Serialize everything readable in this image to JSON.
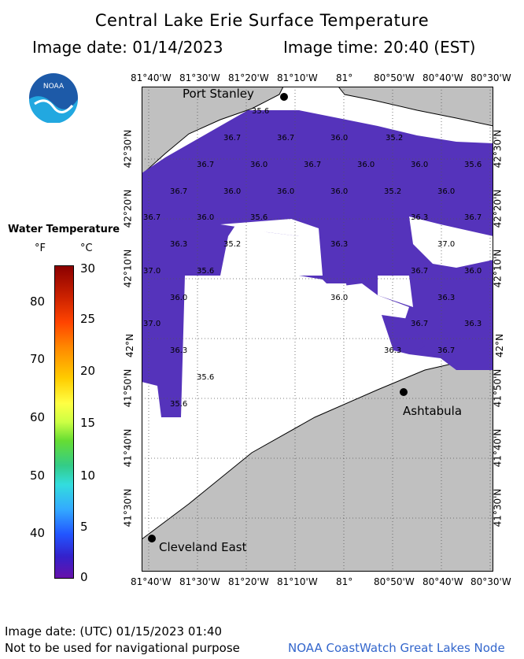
{
  "title": "Central Lake Erie Surface Temperature",
  "image_date": "Image date: 01/14/2023",
  "image_time": "Image time: 20:40 (EST)",
  "logo": {
    "icon": "noaa-logo-icon",
    "text": "NOAA"
  },
  "legend": {
    "title": "Water Temperature",
    "unit_f": "°F",
    "unit_c": "°C",
    "f_ticks": [
      "80",
      "70",
      "60",
      "50",
      "40"
    ],
    "c_ticks": [
      "30",
      "25",
      "20",
      "15",
      "10",
      "5",
      "0"
    ]
  },
  "axes": {
    "lon_labels": [
      "81°40'W",
      "81°30'W",
      "81°20'W",
      "81°10'W",
      "81°",
      "80°50'W",
      "80°40'W",
      "80°30'W"
    ],
    "lat_labels": [
      "42°30'N",
      "42°20'N",
      "42°10'N",
      "42°N",
      "41°50'N",
      "41°40'N",
      "41°30'N"
    ]
  },
  "cities": [
    "Port Stanley",
    "Ashtabula",
    "Cleveland East"
  ],
  "temp_labels": [
    "35.6",
    "36.7",
    "36.7",
    "36.0",
    "35.2",
    "36.7",
    "36.0",
    "36.7",
    "36.0",
    "36.0",
    "35.6",
    "36.7",
    "36.0",
    "36.0",
    "36.0",
    "35.2",
    "36.0",
    "36.7",
    "36.0",
    "35.6",
    "36.3",
    "36.7",
    "36.3",
    "35.2",
    "36.3",
    "37.0",
    "37.0",
    "35.6",
    "36.7",
    "36.0",
    "36.0",
    "36.3",
    "36.0",
    "37.0",
    "36.7",
    "36.3",
    "36.3",
    "36.7",
    "36.3",
    "35.6",
    "35.6"
  ],
  "footer": {
    "utc_date": "Image date: (UTC) 01/15/2023  01:40",
    "disclaimer": "Not to be used for navigational purpose",
    "credit": "NOAA CoastWatch Great Lakes Node"
  }
}
